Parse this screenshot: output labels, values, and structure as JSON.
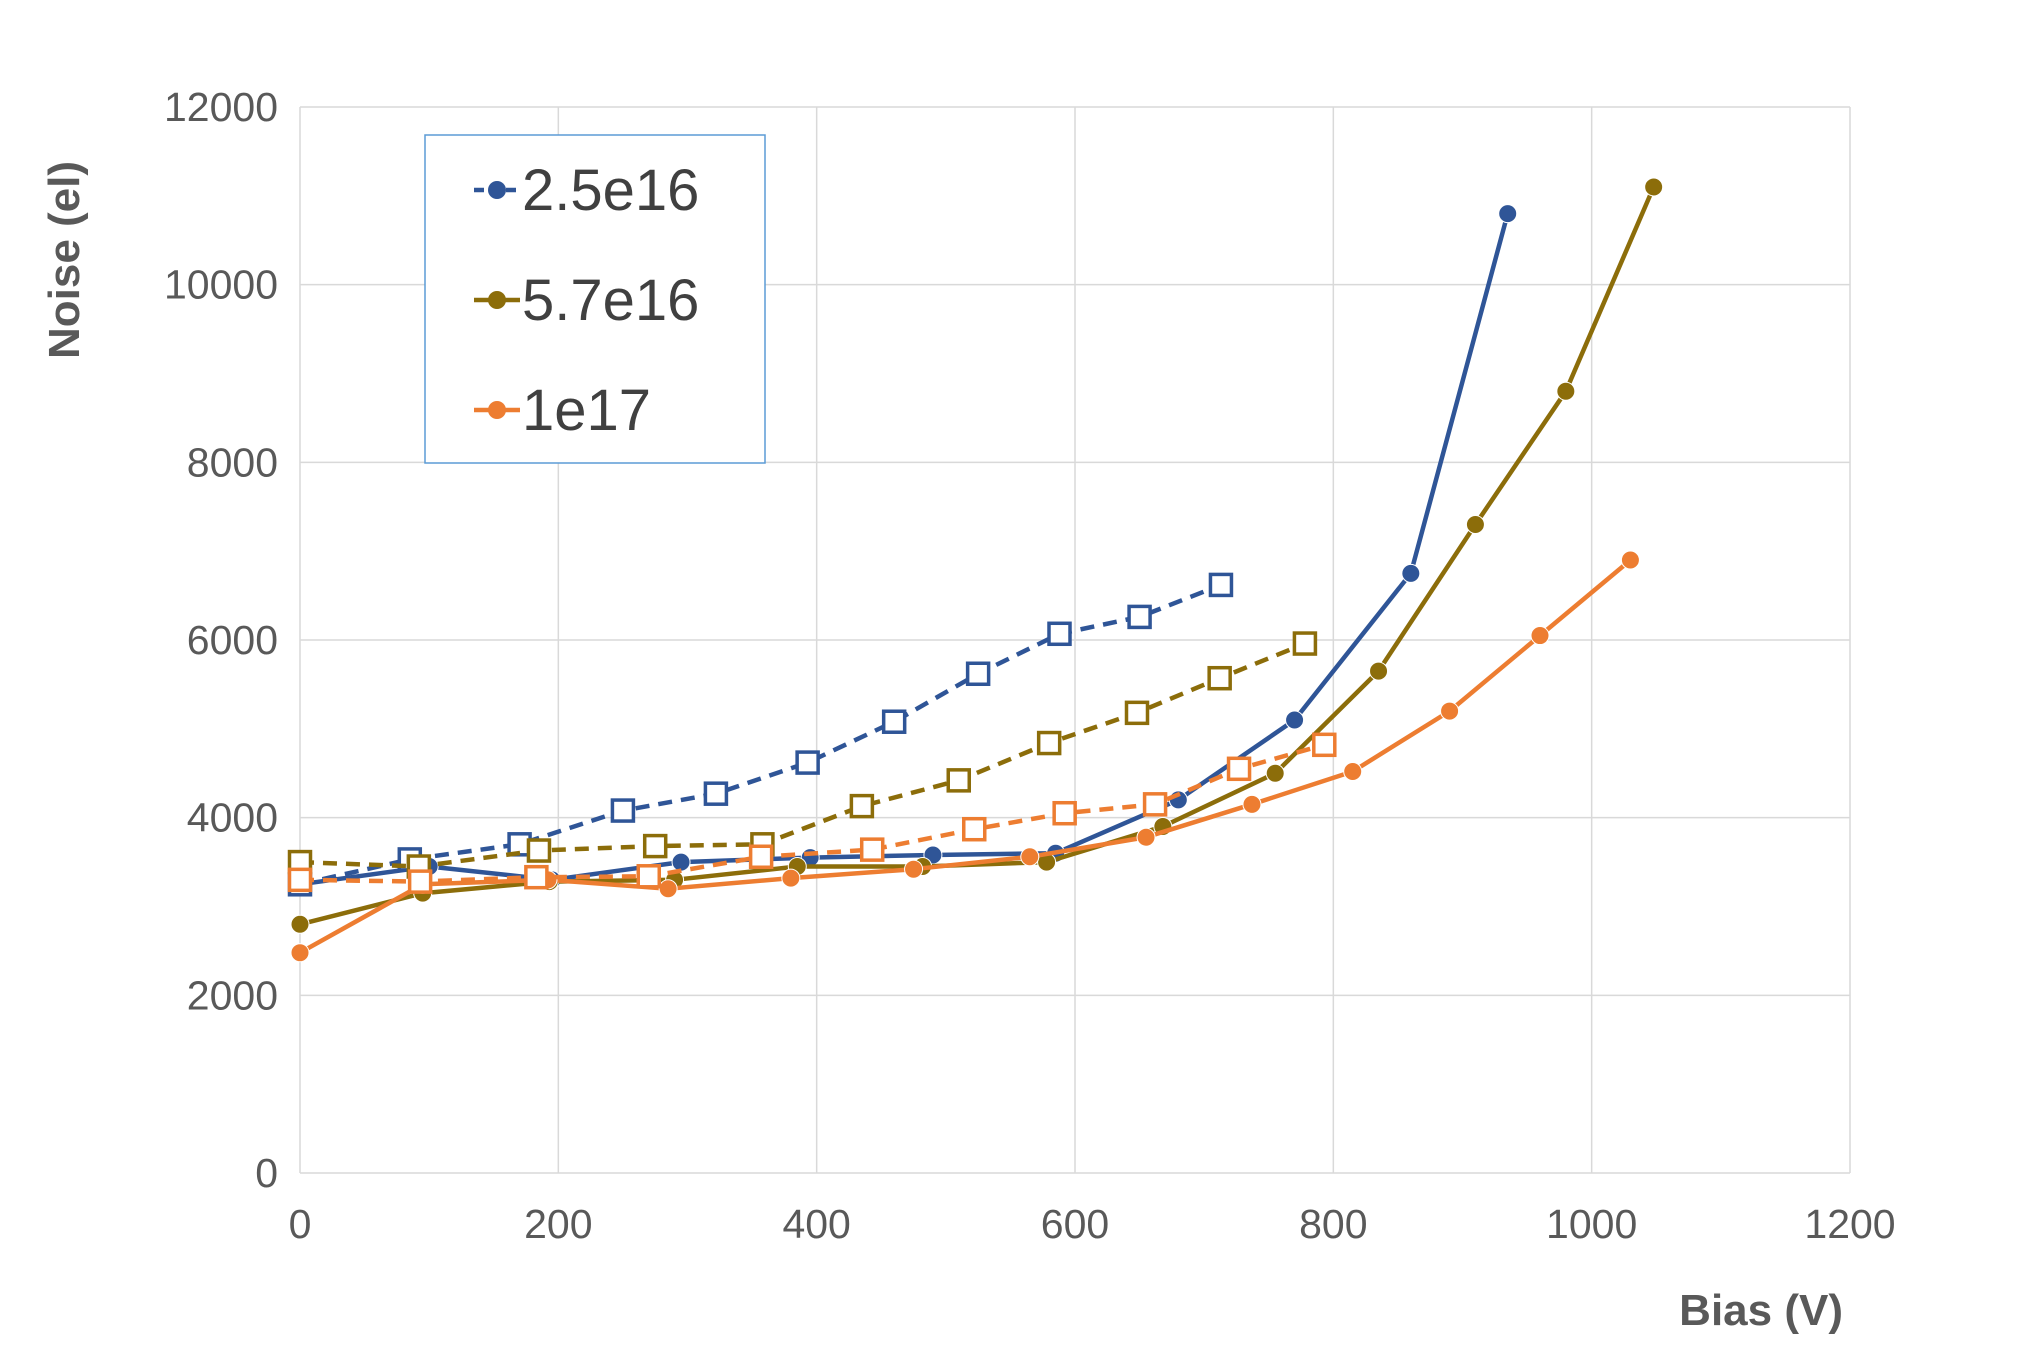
{
  "chart_data": {
    "type": "line",
    "title": "",
    "xlabel": "Bias (V)",
    "ylabel": "Noise  (el)",
    "xlim": [
      0,
      1200
    ],
    "ylim": [
      0,
      12000
    ],
    "xticks": [
      "0",
      "200",
      "400",
      "600",
      "800",
      "1000",
      "1200"
    ],
    "yticks": [
      "0",
      "2000",
      "4000",
      "6000",
      "8000",
      "10000",
      "12000"
    ],
    "grid": true,
    "legend_position": "top-left",
    "legend": [
      {
        "name": "2.5e16",
        "color": "#2F5597"
      },
      {
        "name": "5.7e16",
        "color": "#8C6D0A"
      },
      {
        "name": "1e17",
        "color": "#ED7D31"
      }
    ],
    "series": [
      {
        "name": "2.5e16",
        "color": "#2F5597",
        "style": "solid",
        "marker": "circle",
        "x": [
          0,
          100,
          195,
          295,
          395,
          490,
          585,
          680,
          770,
          860,
          935
        ],
        "y": [
          3250,
          3450,
          3300,
          3500,
          3550,
          3580,
          3600,
          4200,
          5100,
          6750,
          10800
        ]
      },
      {
        "name": "5.7e16",
        "color": "#8C6D0A",
        "style": "solid",
        "marker": "circle",
        "x": [
          0,
          95,
          193,
          290,
          385,
          482,
          578,
          668,
          755,
          835,
          910,
          980,
          1048
        ],
        "y": [
          2800,
          3150,
          3280,
          3300,
          3450,
          3450,
          3500,
          3900,
          4500,
          5650,
          7300,
          8800,
          11100
        ]
      },
      {
        "name": "1e17",
        "color": "#ED7D31",
        "style": "solid",
        "marker": "circle",
        "x": [
          0,
          95,
          192,
          285,
          380,
          475,
          565,
          655,
          737,
          815,
          890,
          960,
          1030
        ],
        "y": [
          2480,
          3250,
          3300,
          3200,
          3320,
          3420,
          3560,
          3780,
          4150,
          4520,
          5200,
          6050,
          6900
        ]
      },
      {
        "name": "",
        "color": "#2F5597",
        "style": "dashed",
        "marker": "square",
        "x": [
          0,
          85,
          170,
          250,
          322,
          393,
          460,
          525,
          588,
          650,
          713
        ],
        "y": [
          3250,
          3530,
          3700,
          4080,
          4270,
          4620,
          5080,
          5620,
          6070,
          6260,
          6620
        ]
      },
      {
        "name": "",
        "color": "#8C6D0A",
        "style": "dashed",
        "marker": "square",
        "x": [
          0,
          92,
          185,
          275,
          358,
          435,
          510,
          580,
          648,
          712,
          778
        ],
        "y": [
          3500,
          3450,
          3630,
          3680,
          3700,
          4130,
          4420,
          4840,
          5180,
          5570,
          5960
        ]
      },
      {
        "name": "",
        "color": "#ED7D31",
        "style": "dashed",
        "marker": "square",
        "x": [
          0,
          93,
          183,
          270,
          357,
          443,
          522,
          592,
          662,
          727,
          793
        ],
        "y": [
          3300,
          3280,
          3330,
          3340,
          3560,
          3640,
          3870,
          4050,
          4150,
          4550,
          4820
        ]
      }
    ]
  }
}
